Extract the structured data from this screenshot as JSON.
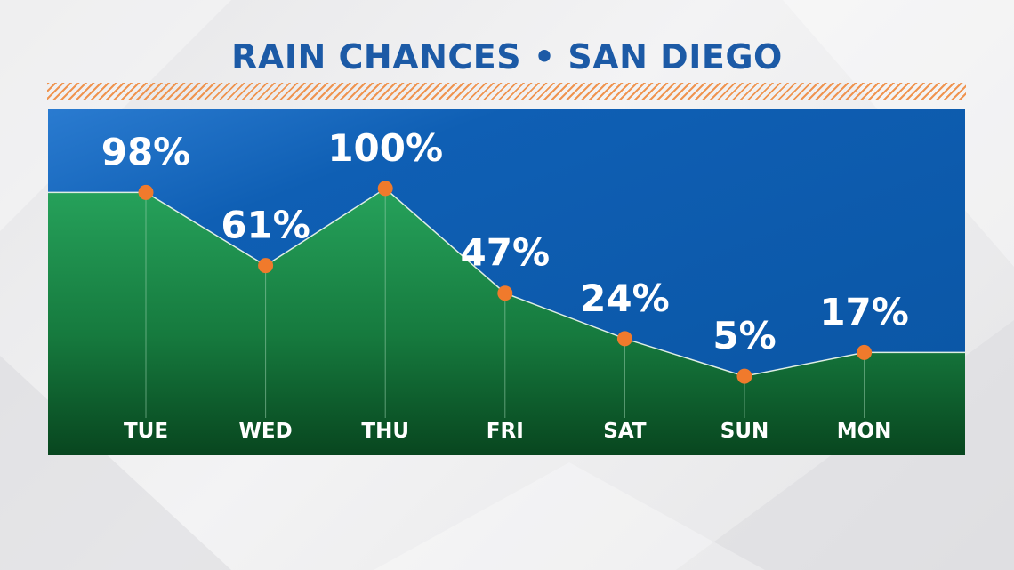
{
  "chart_data": {
    "type": "area",
    "title": "RAIN CHANCES • SAN DIEGO",
    "categories": [
      "TUE",
      "WED",
      "THU",
      "FRI",
      "SAT",
      "SUN",
      "MON"
    ],
    "series": [
      {
        "values": [
          98,
          61,
          100,
          47,
          24,
          5,
          17
        ]
      }
    ],
    "value_labels": [
      "98%",
      "61%",
      "100%",
      "47%",
      "24%",
      "5%",
      "17%"
    ],
    "unit": "%",
    "ylim": [
      -35,
      140
    ],
    "grid": false,
    "legend": "none",
    "colors": {
      "title": "#1c5aa6",
      "sky_top": "#1a6ac0",
      "sky_bottom": "#0c56a6",
      "fill_top": "#25a05a",
      "fill_bottom": "#0a4a25",
      "marker": "#f07a2c",
      "line": "#dfeee4",
      "hatch": "#ef8a3e"
    }
  }
}
